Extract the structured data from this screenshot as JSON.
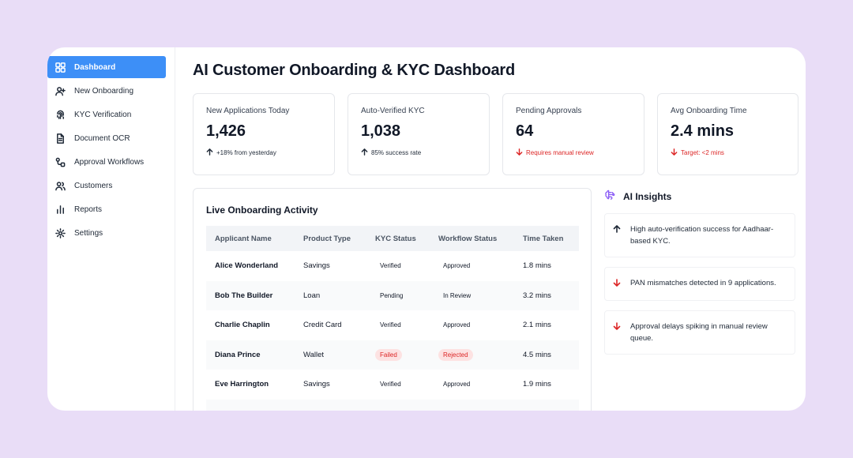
{
  "sidebar": {
    "items": [
      {
        "label": "Dashboard",
        "icon": "grid-icon",
        "active": true
      },
      {
        "label": "New Onboarding",
        "icon": "user-plus-icon"
      },
      {
        "label": "KYC Verification",
        "icon": "fingerprint-icon"
      },
      {
        "label": "Document OCR",
        "icon": "document-icon"
      },
      {
        "label": "Approval Workflows",
        "icon": "workflow-icon"
      },
      {
        "label": "Customers",
        "icon": "users-icon"
      },
      {
        "label": "Reports",
        "icon": "bar-chart-icon"
      },
      {
        "label": "Settings",
        "icon": "gear-icon"
      }
    ]
  },
  "header": {
    "title": "AI Customer Onboarding & KYC Dashboard"
  },
  "stats": [
    {
      "label": "New Applications Today",
      "value": "1,426",
      "note": "+18% from yesterday",
      "trend": "up"
    },
    {
      "label": "Auto-Verified KYC",
      "value": "1,038",
      "note": "85% success rate",
      "trend": "up"
    },
    {
      "label": "Pending Approvals",
      "value": "64",
      "note": "Requires manual review",
      "trend": "down"
    },
    {
      "label": "Avg Onboarding Time",
      "value": "2.4 mins",
      "note": "Target: <2 mins",
      "trend": "down"
    }
  ],
  "activity": {
    "title": "Live Onboarding Activity",
    "columns": [
      "Applicant Name",
      "Product Type",
      "KYC Status",
      "Workflow Status",
      "Time Taken"
    ],
    "rows": [
      {
        "name": "Alice Wonderland",
        "product": "Savings",
        "kyc": "Verified",
        "workflow": "Approved",
        "time": "1.8 mins"
      },
      {
        "name": "Bob The Builder",
        "product": "Loan",
        "kyc": "Pending",
        "workflow": "In Review",
        "time": "3.2 mins"
      },
      {
        "name": "Charlie Chaplin",
        "product": "Credit Card",
        "kyc": "Verified",
        "workflow": "Approved",
        "time": "2.1 mins"
      },
      {
        "name": "Diana Prince",
        "product": "Wallet",
        "kyc": "Failed",
        "workflow": "Rejected",
        "time": "4.5 mins"
      },
      {
        "name": "Eve Harrington",
        "product": "Savings",
        "kyc": "Verified",
        "workflow": "Approved",
        "time": "1.9 mins"
      }
    ]
  },
  "insights": {
    "title": "AI Insights",
    "items": [
      {
        "text": "High auto-verification success for Aadhaar-based KYC.",
        "trend": "up"
      },
      {
        "text": "PAN mismatches detected in 9 applications.",
        "trend": "down"
      },
      {
        "text": "Approval delays spiking in manual review queue.",
        "trend": "down"
      }
    ]
  },
  "colors": {
    "accent": "#3d8ff7",
    "background": "#e9ddf7",
    "negative": "#dc2626",
    "insight_icon": "#8b5cf6"
  }
}
